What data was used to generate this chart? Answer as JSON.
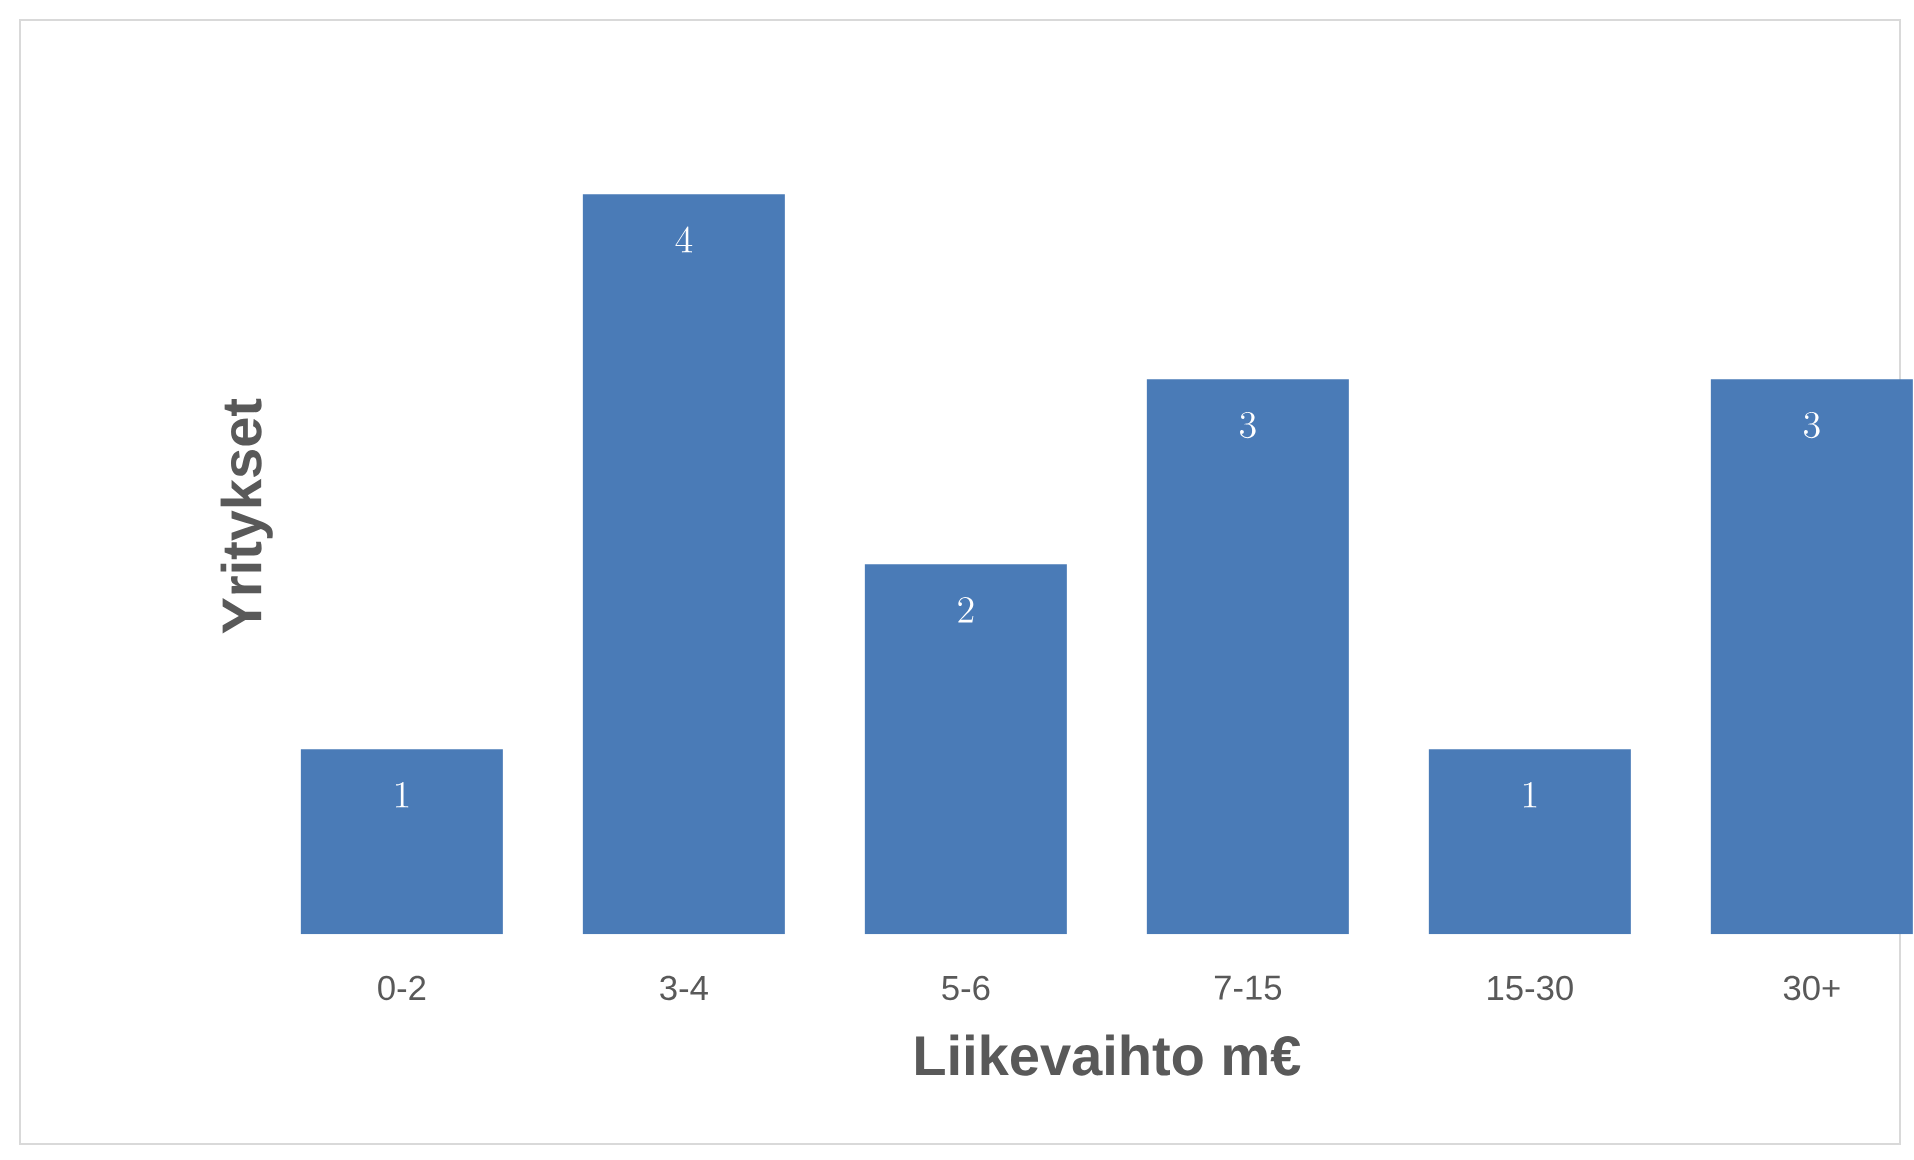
{
  "chart_data": {
    "type": "bar",
    "xlabel": "Liikevaihto m€",
    "ylabel": "Yritykset",
    "categories": [
      "0-2",
      "3-4",
      "5-6",
      "7-15",
      "15-30",
      "30+"
    ],
    "values": [
      1,
      4,
      2,
      3,
      1,
      3
    ],
    "color": "#4a7bb7",
    "data_labels": true
  }
}
